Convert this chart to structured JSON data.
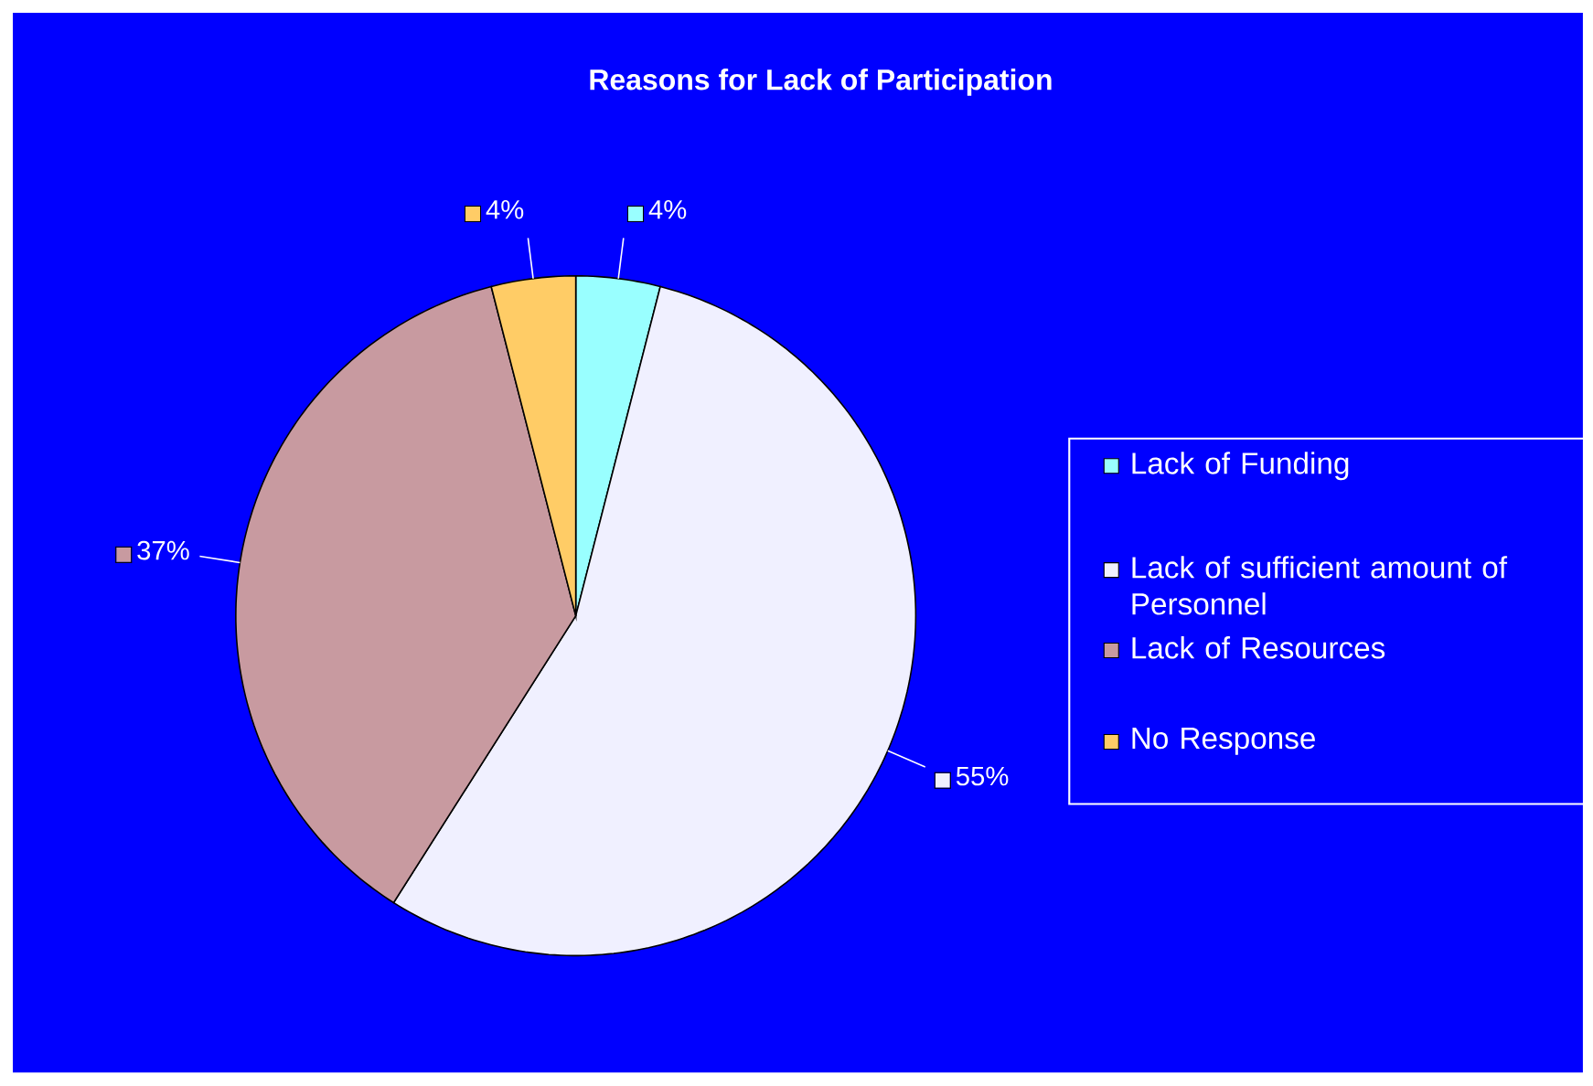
{
  "chart_data": {
    "type": "pie",
    "title": "Reasons for Lack of Participation",
    "categories": [
      "Lack of Funding",
      "Lack of sufficient amount of Personnel",
      "Lack of Resources",
      "No Response"
    ],
    "values": [
      4,
      55,
      37,
      4
    ],
    "value_labels": [
      "4%",
      "55%",
      "37%",
      "4%"
    ],
    "colors": [
      "#99ffff",
      "#f0f0ff",
      "#c89aa0",
      "#ffcc66"
    ],
    "legend": "right"
  }
}
